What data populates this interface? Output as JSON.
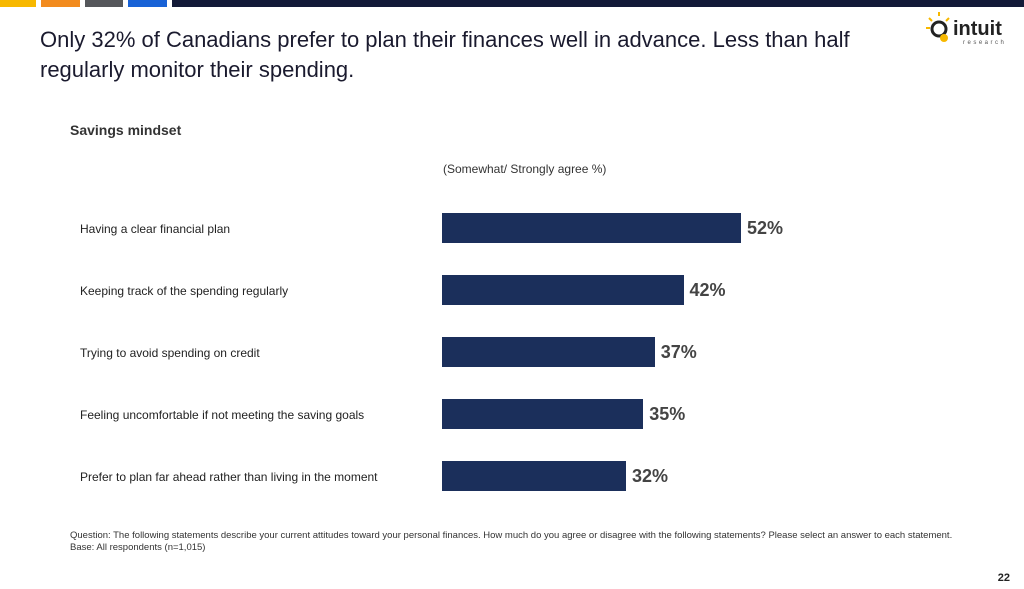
{
  "header": {
    "accent_colors": [
      "#f7b800",
      "#f28b1e",
      "#55575b",
      "#1862d6",
      "#131a38"
    ]
  },
  "title": "Only 32% of Canadians prefer to plan their finances well in advance. Less than half regularly monitor their spending.",
  "logo": {
    "text": "intuit",
    "subtext": "research"
  },
  "chart_data": {
    "type": "bar",
    "orientation": "horizontal",
    "title": "Savings mindset",
    "unit_label": "(Somewhat/ Strongly agree %)",
    "categories": [
      "Having a clear financial plan",
      "Keeping track of the spending regularly",
      "Trying to avoid spending on credit",
      "Feeling uncomfortable if not meeting the saving goals",
      "Prefer to plan far ahead rather than living in the moment"
    ],
    "values": [
      52,
      42,
      37,
      35,
      32
    ],
    "labels": [
      "52%",
      "42%",
      "37%",
      "35%",
      "32%"
    ],
    "color": "#1b2f5b",
    "grid": false
  },
  "footer": {
    "question": "Question: The following statements describe your current attitudes toward your personal finances. How much do you agree or disagree with the following statements? Please select an answer to each statement.",
    "base": "Base: All respondents (n=1,015)",
    "page_number": "22"
  }
}
